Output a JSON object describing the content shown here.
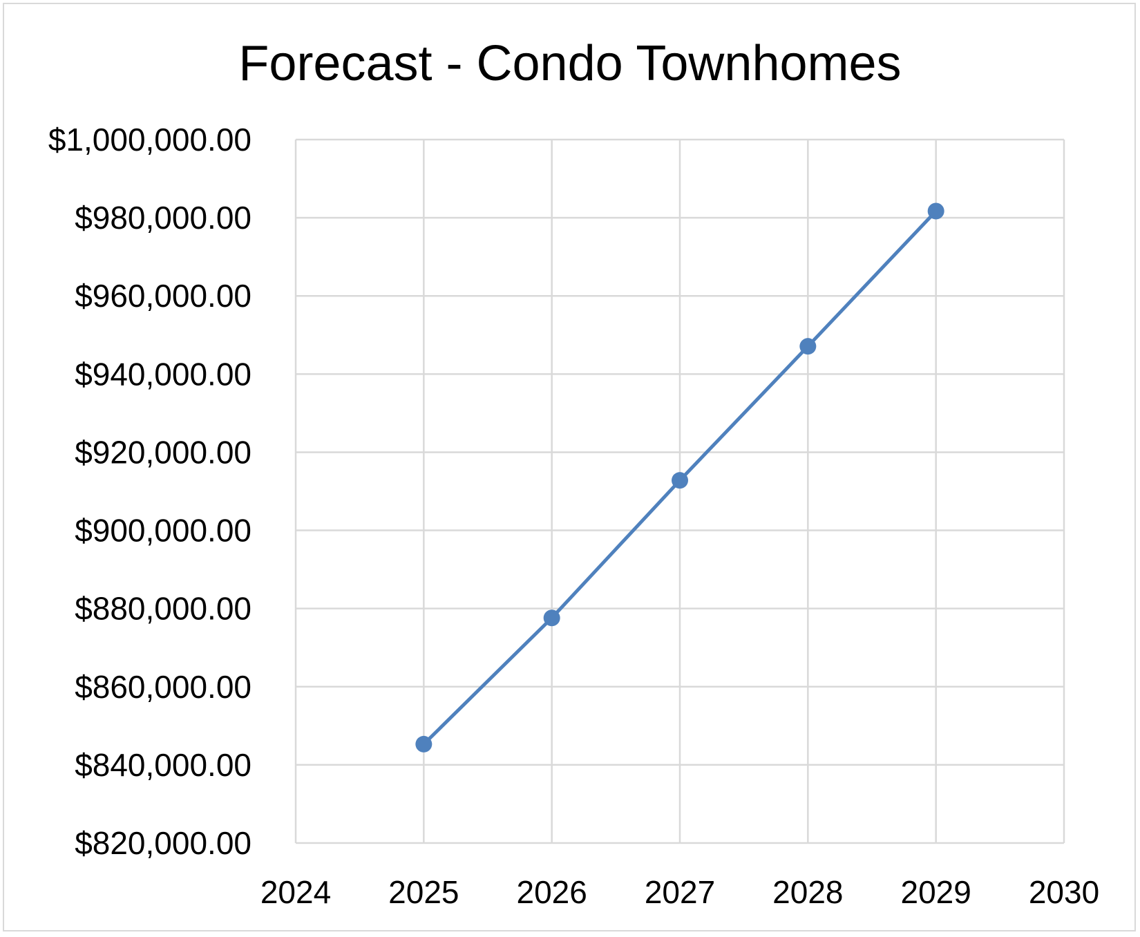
{
  "chart_data": {
    "type": "scatter",
    "title": "Forecast - Condo Townhomes",
    "xlabel": "",
    "ylabel": "",
    "xlim": [
      2024,
      2030
    ],
    "ylim": [
      820000,
      1000000
    ],
    "x_ticks": [
      2024,
      2025,
      2026,
      2027,
      2028,
      2029,
      2030
    ],
    "x_tick_labels": [
      "2024",
      "2025",
      "2026",
      "2027",
      "2028",
      "2029",
      "2030"
    ],
    "y_ticks": [
      820000,
      840000,
      860000,
      880000,
      900000,
      920000,
      940000,
      960000,
      980000,
      1000000
    ],
    "y_tick_labels": [
      "$820,000.00",
      "$840,000.00",
      "$860,000.00",
      "$880,000.00",
      "$900,000.00",
      "$920,000.00",
      "$940,000.00",
      "$960,000.00",
      "$980,000.00",
      "$1,000,000.00"
    ],
    "grid": true,
    "legend": "none",
    "series": [
      {
        "x": [
          2025,
          2026,
          2027,
          2028,
          2029
        ],
        "y": [
          845300,
          877600,
          912800,
          947100,
          981700
        ],
        "color": "#4f81bd",
        "lines": true,
        "markers": true
      }
    ]
  }
}
